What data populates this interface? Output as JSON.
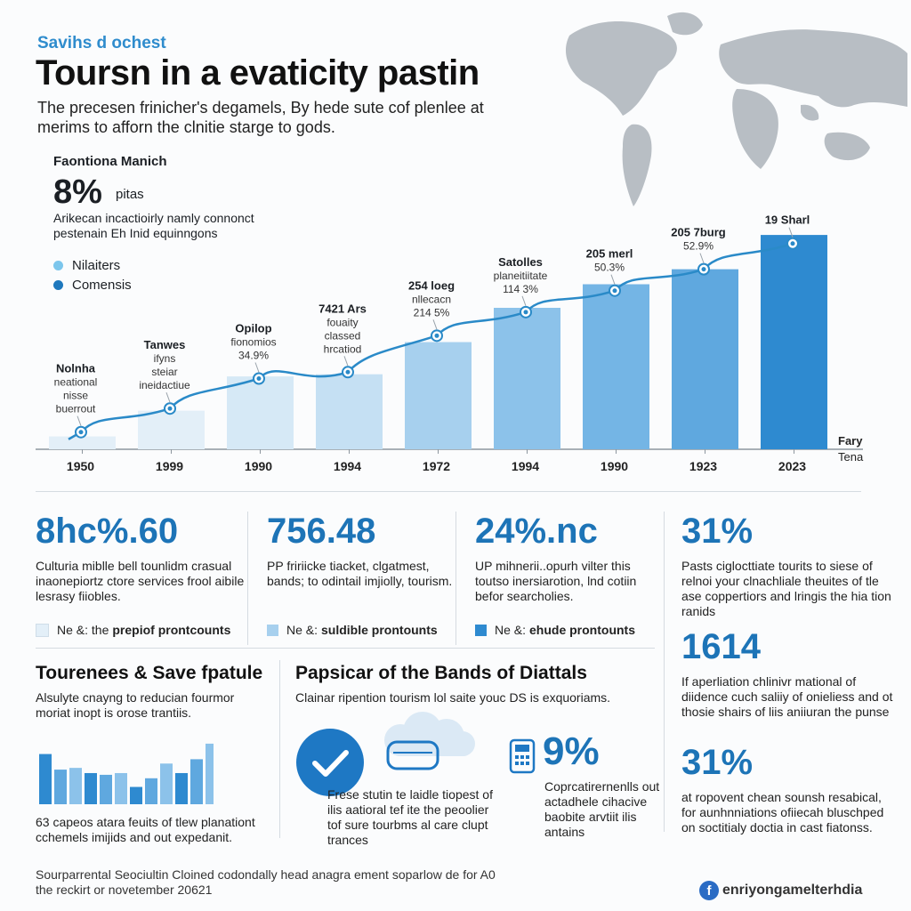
{
  "header": {
    "kicker": "Savihs d ochest",
    "title": "Toursn in a evaticity pastin",
    "subtitle": "The precesen frinicher's degamels, By hede sute cof plenlee at merims to afforn the clnitie starge to gods."
  },
  "side_panel": {
    "heading": "Faontiona Manich",
    "big_value": "8%",
    "big_suffix": "pitas",
    "description": "Arikecan incactioirly namly connonct pestenain Eh Inid equinngons",
    "legend": [
      {
        "label": "Nilaiters",
        "color": "#7cc6ec"
      },
      {
        "label": "Comensis",
        "color": "#1e78bd"
      }
    ]
  },
  "chart_data": {
    "type": "bar",
    "categories": [
      "1950",
      "1999",
      "1990",
      "1994",
      "1972",
      "1994",
      "1990",
      "1923",
      "2023"
    ],
    "values": [
      6,
      18,
      34,
      35,
      50,
      66,
      77,
      84,
      100
    ],
    "line_values": [
      8,
      19,
      33,
      36,
      53,
      64,
      74,
      84,
      96
    ],
    "ylim": [
      0,
      110
    ],
    "grid": false,
    "bar_colors": [
      "#e3eff8",
      "#e3eff8",
      "#d6e9f6",
      "#c5e0f3",
      "#a7d0ee",
      "#8cc2ea",
      "#74b5e5",
      "#5fa8df",
      "#2e8ad0"
    ],
    "line_color": "#2a8ac8",
    "annotations": [
      {
        "lines": [
          "Nolnha",
          "neational",
          "nisse",
          "buerrout"
        ]
      },
      {
        "lines": [
          "Tanwes",
          "ifyns",
          "steiar",
          "ineidactiue"
        ]
      },
      {
        "lines": [
          "Opilop",
          "fionomios",
          "34.9%"
        ]
      },
      {
        "lines": [
          "7421 Ars",
          "fouaity",
          "classed",
          "hrcatiod"
        ]
      },
      {
        "lines": [
          "254 loeg",
          "nllecacn",
          "214 5%"
        ]
      },
      {
        "lines": [
          "Satolles",
          "planeitiitate",
          "114 3%"
        ]
      },
      {
        "lines": [
          "205 merl",
          "50.3%"
        ]
      },
      {
        "lines": [
          "205 7burg",
          "52.9%"
        ]
      },
      {
        "lines": [
          "19 Sharl"
        ]
      }
    ],
    "end_label": [
      "Fary",
      "Tena"
    ]
  },
  "stats": [
    {
      "value": "8hc%.60",
      "desc": "Culturia miblle bell tounlidm crasual inaonepiortz ctore services frool aibile lesrasy fiiobles.",
      "legend_pre": "Ne &: the",
      "legend_bold": "prepiof prontcounts",
      "swatch": "#e3eff8"
    },
    {
      "value": "756.48",
      "desc": "PP fririicke tiacket, clgatmest, bands; to odintail imjiolly, tourism.",
      "legend_pre": "Ne &:",
      "legend_bold": "suldible prontounts",
      "swatch": "#a7d0ee"
    },
    {
      "value": "24%.nc",
      "desc": "UP mihnerii..opurh vilter this toutso inersiarotion, lnd cotiin befor searcholies.",
      "legend_pre": "Ne &:",
      "legend_bold": "ehude prontounts",
      "swatch": "#2e8ad0"
    }
  ],
  "right_stats": [
    {
      "value": "31%",
      "desc": "Pasts ciglocttiate tourits to siese of relnoi your clnachliale theuites of tle ase coppertiors and lringis the hia tion ranids"
    },
    {
      "value": "1614",
      "desc": "If aperliation chlinivr mational of diidence cuch saliiy of onieliess and ot thosie shairs of liis aniiuran the punse"
    },
    {
      "value": "31%",
      "desc": "at ropovent chean sounsh resabical, for aunhnniations ofiiecah bluschped on soctitialy doctia in cast fiatonss."
    }
  ],
  "section_left": {
    "title": "Tourenees & Save fpatule",
    "desc": "Alsulyte cnayng to reducian fourmor moriat inopt is orose trantiis.",
    "mini_bars": [
      58,
      40,
      42,
      36,
      34,
      36,
      20,
      30,
      47,
      36,
      52,
      70
    ],
    "caption": "63 capeos atara feuits of tlew planationt cchemels imijids and out expedanit."
  },
  "section_mid": {
    "title": "Papsicar of the Bands of Diattals",
    "desc": "Clainar ripention tourism lol saite youc DS is exquoriams.",
    "caption": "Frese stutin te laidle tiopest of ilis aatioral tef ite the peoolier tof sure tourbms al care clupt trances",
    "pct": "9%",
    "pct_desc": "Coprcatirernenlls out actadhele cihacive baobite arvtiit ilis antains"
  },
  "footer": {
    "source": "Sourparrental Seociultin Cloined codondally head anagra ement soparlow de for A0 the reckirt or novetember 20621",
    "brand": "enriyongamelterhdia",
    "brand_icon": "f"
  }
}
